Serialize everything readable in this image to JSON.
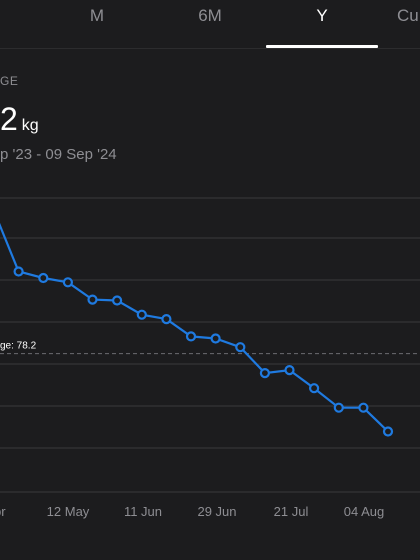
{
  "tabs": [
    {
      "label": "M",
      "active": false
    },
    {
      "label": "6M",
      "active": false
    },
    {
      "label": "Y",
      "active": true
    },
    {
      "label": "Cu",
      "active": false
    }
  ],
  "summary": {
    "label": "GE",
    "value": "2",
    "unit": "kg",
    "range": "p '23 - 09 Sep '24"
  },
  "chart_data": {
    "type": "line",
    "x_labels": [
      "pr",
      "12 May",
      "11 Jun",
      "29 Jun",
      "21 Jul",
      "04 Aug"
    ],
    "series": [
      {
        "color": "#1f7ae0",
        "values": [
          81.5,
          80.1,
          79.95,
          79.85,
          79.45,
          79.43,
          79.1,
          79.0,
          78.6,
          78.55,
          78.35,
          77.75,
          77.82,
          77.4,
          76.95,
          76.95,
          76.4
        ]
      }
    ],
    "average": {
      "label": "ge: 78.2",
      "value": 78.2
    },
    "ylim": [
      75.0,
      81.8
    ],
    "grid": true
  },
  "colors": {
    "background": "#1c1c1e",
    "accent": "#1f7ae0",
    "grid": "#3a3a3c",
    "muted_text": "#8e8e93"
  }
}
